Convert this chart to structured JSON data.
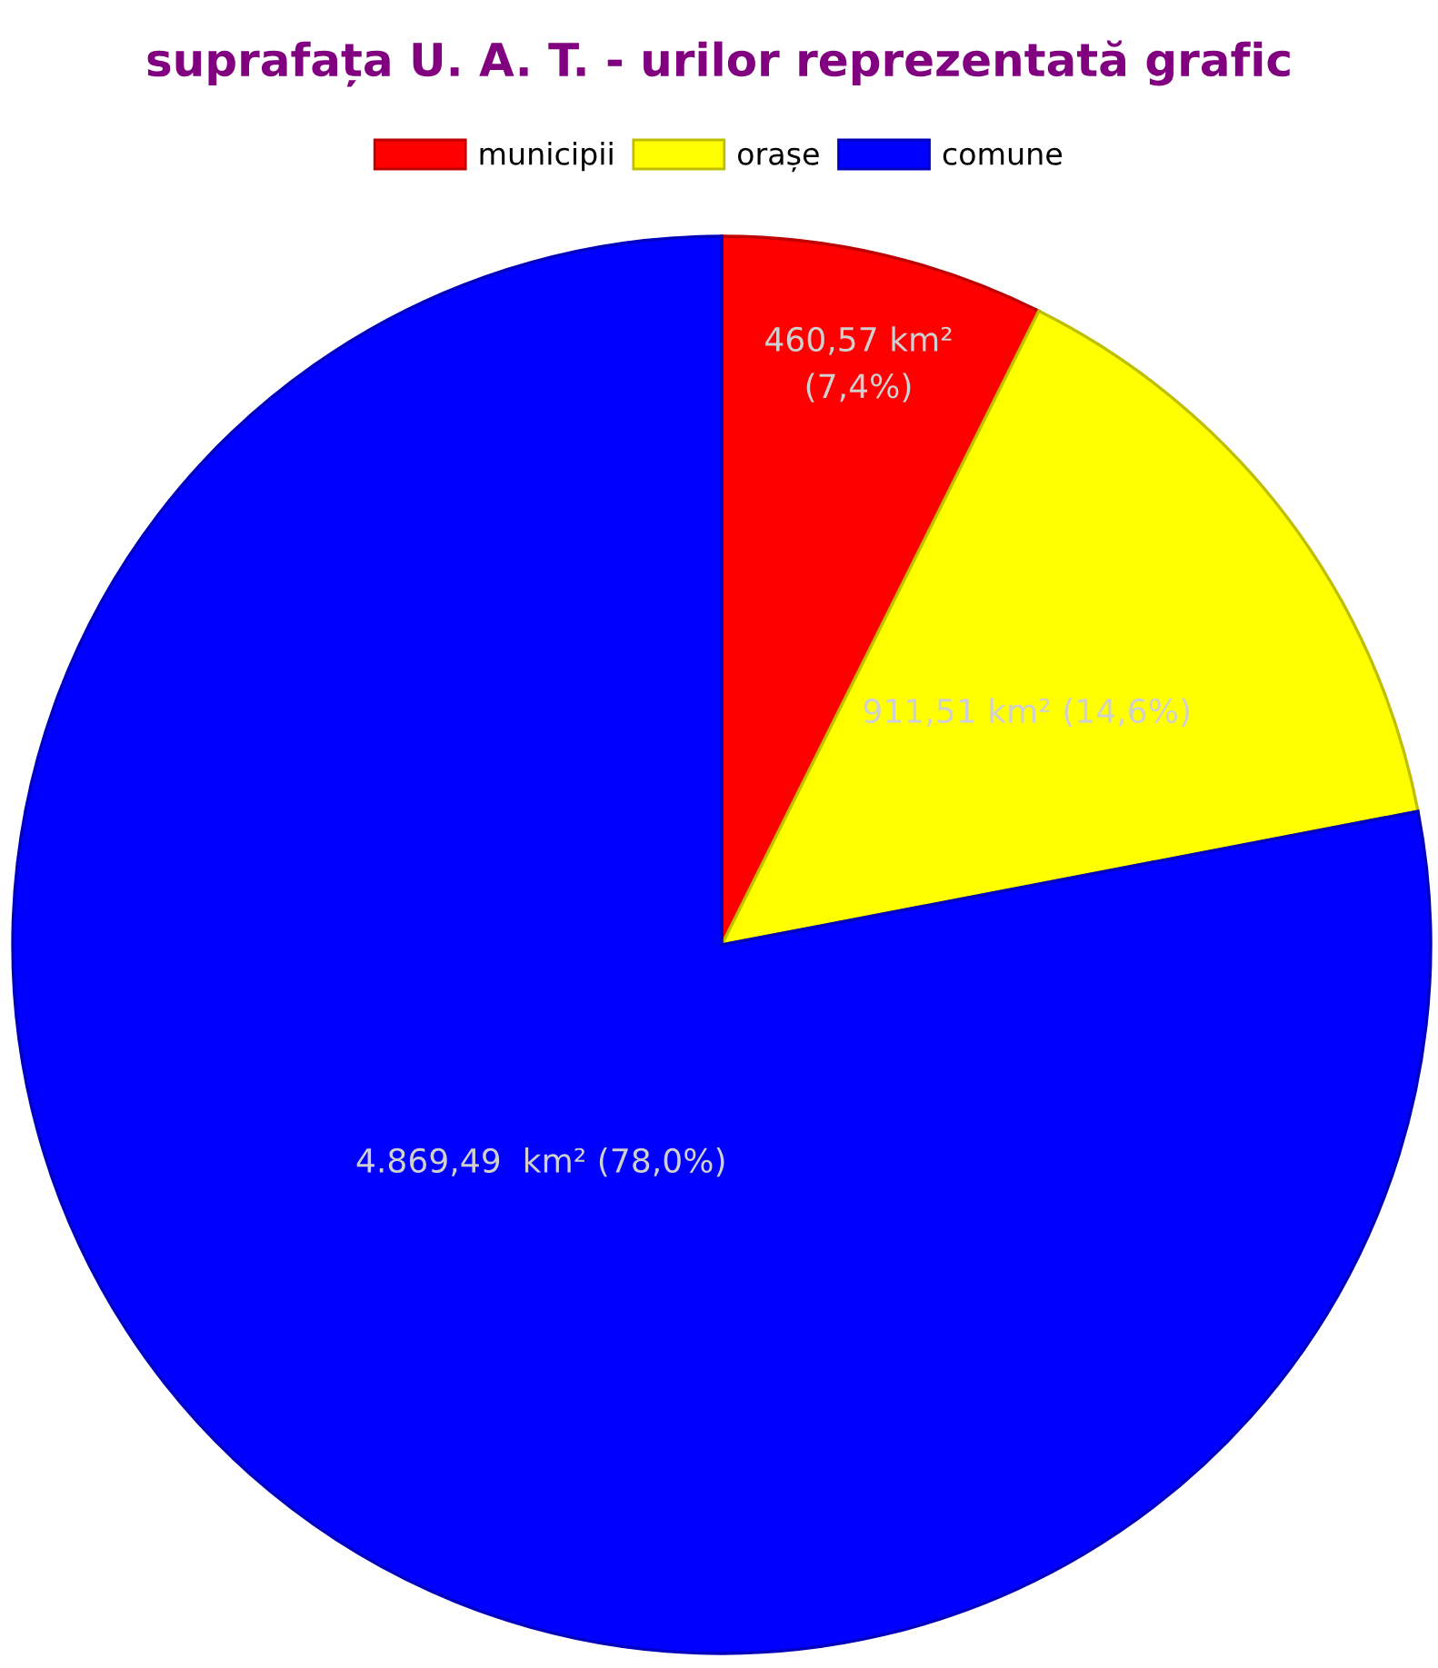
{
  "chart_data": {
    "type": "pie",
    "title": "suprafața U. A. T. - urilor reprezentată grafic",
    "categories": [
      "municipii",
      "orașe",
      "comune"
    ],
    "values": [
      460.57,
      911.51,
      4869.49
    ],
    "colors": [
      "#ff0000",
      "#ffff00",
      "#0000ff"
    ],
    "value_labels": [
      "460,57 km²\n(7,4%)",
      "911,51 km² (14,6%)",
      "4.869,49  km² (78,0%)"
    ],
    "legend": "top"
  }
}
